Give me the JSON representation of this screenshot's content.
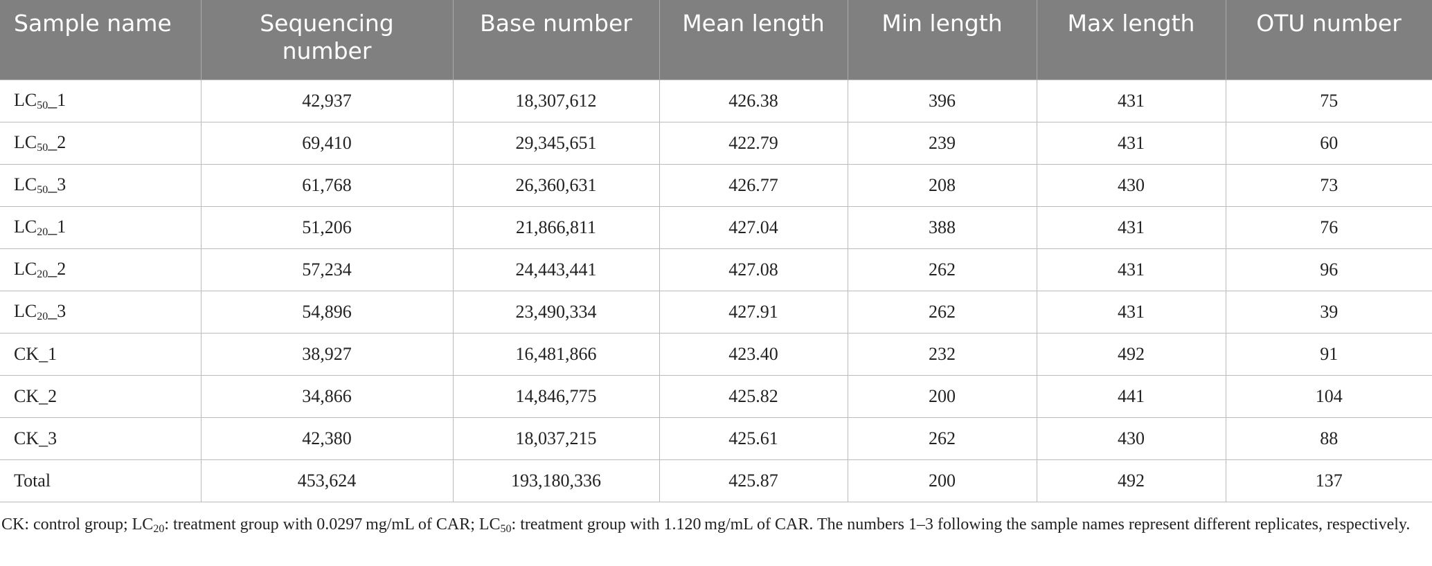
{
  "table": {
    "header": [
      "Sample name",
      "Sequencing number",
      "Base number",
      "Mean length",
      "Min length",
      "Max length",
      "OTU number"
    ],
    "rows": [
      [
        {
          "base": "LC",
          "sub": "50",
          "suffix": "_1"
        },
        "42,937",
        "18,307,612",
        "426.38",
        "396",
        "431",
        "75"
      ],
      [
        {
          "base": "LC",
          "sub": "50",
          "suffix": "_2"
        },
        "69,410",
        "29,345,651",
        "422.79",
        "239",
        "431",
        "60"
      ],
      [
        {
          "base": "LC",
          "sub": "50",
          "suffix": "_3"
        },
        "61,768",
        "26,360,631",
        "426.77",
        "208",
        "430",
        "73"
      ],
      [
        {
          "base": "LC",
          "sub": "20",
          "suffix": "_1"
        },
        "51,206",
        "21,866,811",
        "427.04",
        "388",
        "431",
        "76"
      ],
      [
        {
          "base": "LC",
          "sub": "20",
          "suffix": "_2"
        },
        "57,234",
        "24,443,441",
        "427.08",
        "262",
        "431",
        "96"
      ],
      [
        {
          "base": "LC",
          "sub": "20",
          "suffix": "_3"
        },
        "54,896",
        "23,490,334",
        "427.91",
        "262",
        "431",
        "39"
      ],
      [
        "CK_1",
        "38,927",
        "16,481,866",
        "423.40",
        "232",
        "492",
        "91"
      ],
      [
        "CK_2",
        "34,866",
        "14,846,775",
        "425.82",
        "200",
        "441",
        "104"
      ],
      [
        "CK_3",
        "42,380",
        "18,037,215",
        "425.61",
        "262",
        "430",
        "88"
      ],
      [
        "Total",
        "453,624",
        "193,180,336",
        "425.87",
        "200",
        "492",
        "137"
      ]
    ]
  },
  "footnote": [
    {
      "text": "CK: control group; LC"
    },
    {
      "sub": "20"
    },
    {
      "text": ": treatment group with 0.0297 mg/mL of CAR; LC"
    },
    {
      "sub": "50"
    },
    {
      "text": ": treatment group with 1.120 mg/mL of CAR. The numbers 1–3 following the sample names represent different replicates, respectively."
    }
  ]
}
